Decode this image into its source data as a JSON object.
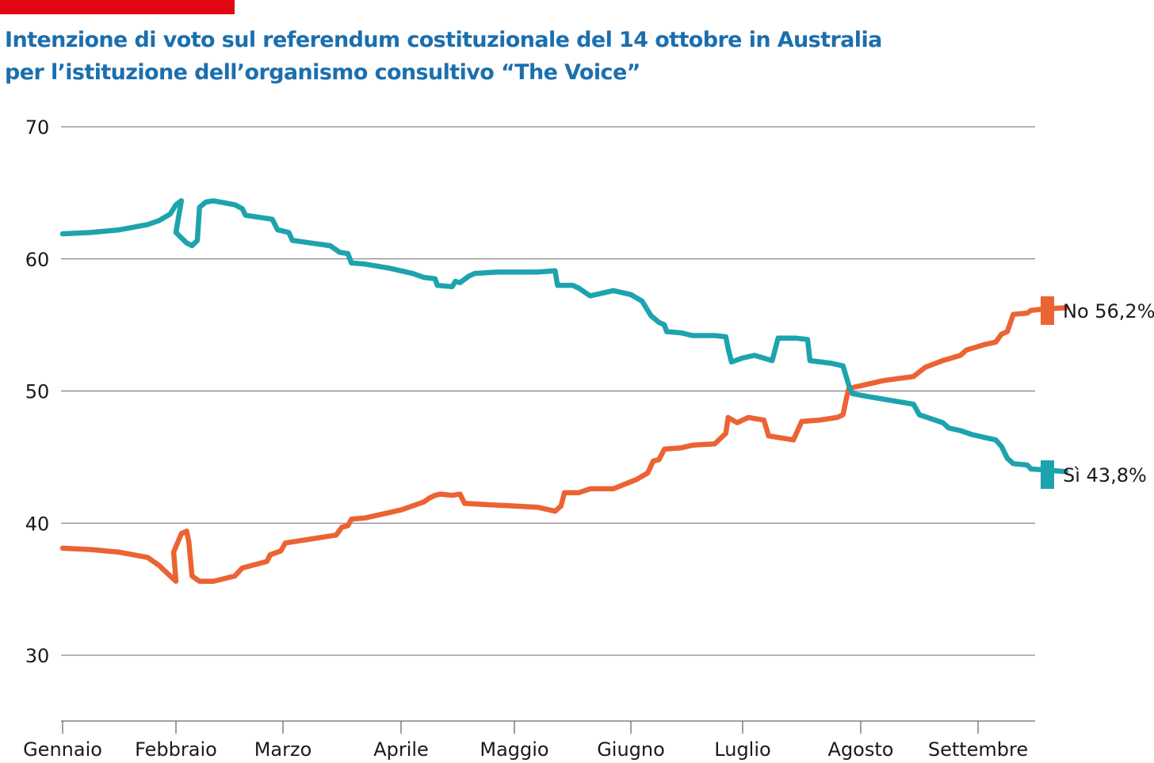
{
  "header": {
    "accent_bar_color": "#e30613",
    "title_line1": "Intenzione di voto sul referendum costituzionale del 14 ottobre in Australia",
    "title_line2": "per l’istituzione dell’organismo consultivo “The Voice”",
    "title_color": "#1b6fae"
  },
  "chart_data": {
    "type": "line",
    "ylim": [
      25,
      70
    ],
    "yticks": [
      30,
      40,
      50,
      60,
      70
    ],
    "grid": true,
    "x_unit": "months since start of year",
    "x_range": [
      0,
      8.5
    ],
    "months": [
      "Gennaio",
      "Febbraio",
      "Marzo",
      "Aprile",
      "Maggio",
      "Giugno",
      "Luglio",
      "Agosto",
      "Settembre"
    ],
    "series": [
      {
        "name": "No",
        "label": "No 56,2%",
        "final_value": 56.2,
        "color": "#ec6333",
        "points": [
          [
            0,
            38.1
          ],
          [
            0.25,
            38
          ],
          [
            0.5,
            37.8
          ],
          [
            0.75,
            37.4
          ],
          [
            0.85,
            36.8
          ],
          [
            0.95,
            36.0
          ],
          [
            1.0,
            35.6
          ],
          [
            0.98,
            37.8
          ],
          [
            1.05,
            39.2
          ],
          [
            1.1,
            39.4
          ],
          [
            1.12,
            38.6
          ],
          [
            1.15,
            36.0
          ],
          [
            1.22,
            35.6
          ],
          [
            1.35,
            35.6
          ],
          [
            1.55,
            36.0
          ],
          [
            1.62,
            36.6
          ],
          [
            1.85,
            37.1
          ],
          [
            1.88,
            37.6
          ],
          [
            1.98,
            37.9
          ],
          [
            2.02,
            38.5
          ],
          [
            2.45,
            39.1
          ],
          [
            2.5,
            39.7
          ],
          [
            2.55,
            39.8
          ],
          [
            2.58,
            40.3
          ],
          [
            2.7,
            40.4
          ],
          [
            2.9,
            40.8
          ],
          [
            3.0,
            41.0
          ],
          [
            3.1,
            41.3
          ],
          [
            3.2,
            41.6
          ],
          [
            3.25,
            41.9
          ],
          [
            3.3,
            42.1
          ],
          [
            3.35,
            42.2
          ],
          [
            3.45,
            42.1
          ],
          [
            3.52,
            42.2
          ],
          [
            3.56,
            41.5
          ],
          [
            3.75,
            41.4
          ],
          [
            4.0,
            41.3
          ],
          [
            4.2,
            41.2
          ],
          [
            4.3,
            41.0
          ],
          [
            4.35,
            40.9
          ],
          [
            4.4,
            41.3
          ],
          [
            4.43,
            42.3
          ],
          [
            4.55,
            42.3
          ],
          [
            4.65,
            42.6
          ],
          [
            4.85,
            42.6
          ],
          [
            5.05,
            43.3
          ],
          [
            5.15,
            43.8
          ],
          [
            5.2,
            44.7
          ],
          [
            5.25,
            44.8
          ],
          [
            5.3,
            45.6
          ],
          [
            5.45,
            45.7
          ],
          [
            5.55,
            45.9
          ],
          [
            5.75,
            46.0
          ],
          [
            5.85,
            46.8
          ],
          [
            5.87,
            48.0
          ],
          [
            5.95,
            47.6
          ],
          [
            6.0,
            47.8
          ],
          [
            6.05,
            48.0
          ],
          [
            6.18,
            47.8
          ],
          [
            6.22,
            46.6
          ],
          [
            6.43,
            46.3
          ],
          [
            6.5,
            47.7
          ],
          [
            6.65,
            47.8
          ],
          [
            6.8,
            48.0
          ],
          [
            6.85,
            48.2
          ],
          [
            6.88,
            49.5
          ],
          [
            6.9,
            50.2
          ],
          [
            7.05,
            50.5
          ],
          [
            7.2,
            50.8
          ],
          [
            7.45,
            51.1
          ],
          [
            7.55,
            51.8
          ],
          [
            7.7,
            52.3
          ],
          [
            7.85,
            52.7
          ],
          [
            7.9,
            53.1
          ],
          [
            8.05,
            53.5
          ],
          [
            8.15,
            53.7
          ],
          [
            8.2,
            54.3
          ],
          [
            8.25,
            54.5
          ],
          [
            8.3,
            55.8
          ],
          [
            8.42,
            55.9
          ],
          [
            8.45,
            56.1
          ],
          [
            8.55,
            56.2
          ],
          [
            8.75,
            56.3
          ]
        ]
      },
      {
        "name": "Sì",
        "label": "Sì 43,8%",
        "final_value": 43.8,
        "color": "#1da3ae",
        "points": [
          [
            0,
            61.9
          ],
          [
            0.25,
            62.0
          ],
          [
            0.5,
            62.2
          ],
          [
            0.75,
            62.6
          ],
          [
            0.85,
            62.9
          ],
          [
            0.95,
            63.4
          ],
          [
            1.0,
            64.1
          ],
          [
            1.05,
            64.4
          ],
          [
            1.0,
            62.0
          ],
          [
            1.1,
            61.2
          ],
          [
            1.15,
            61.0
          ],
          [
            1.2,
            61.4
          ],
          [
            1.22,
            63.9
          ],
          [
            1.28,
            64.3
          ],
          [
            1.35,
            64.4
          ],
          [
            1.55,
            64.1
          ],
          [
            1.62,
            63.8
          ],
          [
            1.65,
            63.3
          ],
          [
            1.9,
            63.0
          ],
          [
            1.95,
            62.2
          ],
          [
            2.05,
            62.0
          ],
          [
            2.08,
            61.4
          ],
          [
            2.4,
            61.0
          ],
          [
            2.48,
            60.5
          ],
          [
            2.55,
            60.4
          ],
          [
            2.58,
            59.7
          ],
          [
            2.7,
            59.6
          ],
          [
            2.9,
            59.3
          ],
          [
            3.0,
            59.1
          ],
          [
            3.1,
            58.9
          ],
          [
            3.2,
            58.6
          ],
          [
            3.3,
            58.5
          ],
          [
            3.32,
            58.0
          ],
          [
            3.45,
            57.9
          ],
          [
            3.48,
            58.3
          ],
          [
            3.52,
            58.2
          ],
          [
            3.6,
            58.7
          ],
          [
            3.65,
            58.9
          ],
          [
            3.85,
            59.0
          ],
          [
            4.2,
            59.0
          ],
          [
            4.35,
            59.1
          ],
          [
            4.37,
            58.0
          ],
          [
            4.5,
            58.0
          ],
          [
            4.55,
            57.8
          ],
          [
            4.65,
            57.2
          ],
          [
            4.75,
            57.4
          ],
          [
            4.85,
            57.6
          ],
          [
            5.0,
            57.3
          ],
          [
            5.1,
            56.8
          ],
          [
            5.18,
            55.7
          ],
          [
            5.25,
            55.2
          ],
          [
            5.3,
            55.0
          ],
          [
            5.32,
            54.5
          ],
          [
            5.45,
            54.4
          ],
          [
            5.55,
            54.2
          ],
          [
            5.75,
            54.2
          ],
          [
            5.85,
            54.1
          ],
          [
            5.87,
            53.2
          ],
          [
            5.9,
            52.2
          ],
          [
            6.0,
            52.5
          ],
          [
            6.1,
            52.7
          ],
          [
            6.25,
            52.3
          ],
          [
            6.3,
            54.0
          ],
          [
            6.45,
            54.0
          ],
          [
            6.55,
            53.9
          ],
          [
            6.57,
            52.3
          ],
          [
            6.75,
            52.1
          ],
          [
            6.85,
            51.9
          ],
          [
            6.9,
            50.4
          ],
          [
            6.93,
            49.8
          ],
          [
            7.05,
            49.6
          ],
          [
            7.25,
            49.3
          ],
          [
            7.45,
            49.0
          ],
          [
            7.5,
            48.2
          ],
          [
            7.6,
            47.9
          ],
          [
            7.7,
            47.6
          ],
          [
            7.75,
            47.2
          ],
          [
            7.85,
            47.0
          ],
          [
            7.95,
            46.7
          ],
          [
            8.05,
            46.5
          ],
          [
            8.15,
            46.3
          ],
          [
            8.2,
            45.8
          ],
          [
            8.25,
            44.9
          ],
          [
            8.3,
            44.5
          ],
          [
            8.42,
            44.4
          ],
          [
            8.45,
            44.1
          ],
          [
            8.6,
            44.0
          ],
          [
            8.75,
            43.9
          ]
        ]
      }
    ]
  }
}
